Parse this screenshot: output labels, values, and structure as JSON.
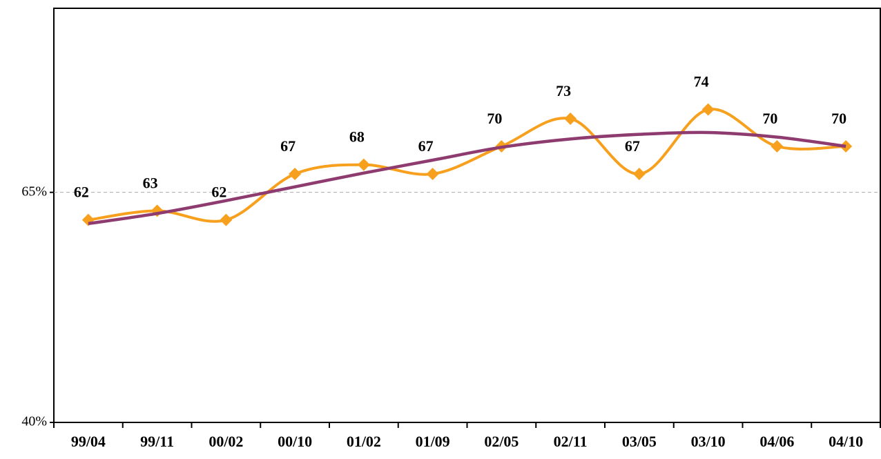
{
  "chart_data": {
    "type": "line",
    "categories": [
      "99/04",
      "99/11",
      "00/02",
      "00/10",
      "01/02",
      "01/09",
      "02/05",
      "02/11",
      "03/05",
      "03/10",
      "04/06",
      "04/10"
    ],
    "series": [
      {
        "color": "#f7a01e",
        "values": [
          62,
          63,
          62,
          67,
          68,
          67,
          70,
          73,
          67,
          74,
          70,
          70
        ],
        "labels": true
      },
      {
        "color": "#8e3b6f",
        "values": [
          61.6,
          62.7,
          64.1,
          65.6,
          67.1,
          68.5,
          69.9,
          70.8,
          71.3,
          71.5,
          71.0,
          70.0
        ]
      }
    ],
    "ylim": [
      40,
      85
    ],
    "yticks": [
      {
        "value": 40,
        "label": "40%"
      },
      {
        "value": 65,
        "label": "65%"
      }
    ],
    "grid": true
  }
}
